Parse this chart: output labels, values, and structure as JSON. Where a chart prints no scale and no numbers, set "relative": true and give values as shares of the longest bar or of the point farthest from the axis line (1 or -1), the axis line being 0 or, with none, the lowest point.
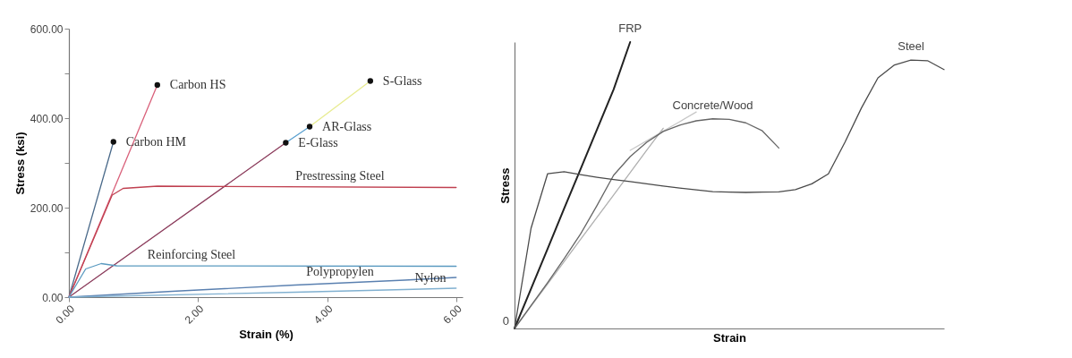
{
  "chart_data": [
    {
      "type": "line",
      "xlabel": "Strain (%)",
      "ylabel": "Stress (ksi)",
      "xlim": [
        0,
        6.1
      ],
      "ylim": [
        0,
        600
      ],
      "xticks": [
        {
          "value": 0,
          "label": "0.00"
        },
        {
          "value": 2,
          "label": "2.00"
        },
        {
          "value": 4,
          "label": "4.00"
        },
        {
          "value": 6,
          "label": "6.00"
        }
      ],
      "yticks": [
        {
          "value": 0,
          "label": "0.00"
        },
        {
          "value": 100,
          "label": null
        },
        {
          "value": 200,
          "label": "200.00"
        },
        {
          "value": 300,
          "label": null
        },
        {
          "value": 400,
          "label": "400.00"
        },
        {
          "value": 500,
          "label": null
        },
        {
          "value": 600,
          "label": "600.00"
        }
      ],
      "grid": false,
      "series": [
        {
          "color": "#4a6a8a",
          "x": [
            0,
            0.69
          ],
          "values": [
            0,
            347
          ]
        },
        {
          "color": "#d9607a",
          "x": [
            0,
            1.37
          ],
          "values": [
            0,
            474
          ]
        },
        {
          "color": "#8a3a5a",
          "x": [
            0,
            3.36
          ],
          "values": [
            0,
            345
          ]
        },
        {
          "color": "#5aa0d0",
          "x": [
            3.36,
            3.73
          ],
          "values": [
            345,
            381
          ]
        },
        {
          "color": "#e8ec90",
          "x": [
            3.73,
            4.67
          ],
          "values": [
            381,
            483
          ]
        },
        {
          "color": "#c04050",
          "x": [
            0,
            0.67,
            0.84,
            1.37,
            6
          ],
          "values": [
            0,
            228,
            243,
            248,
            245
          ]
        },
        {
          "color": "#5a9ac0",
          "x": [
            0,
            0.26,
            0.5,
            0.74,
            6
          ],
          "values": [
            0,
            63,
            75,
            70,
            69
          ]
        },
        {
          "color": "#5a80b0",
          "x": [
            0,
            1.6,
            3.5,
            5.2,
            6
          ],
          "values": [
            0,
            13,
            27,
            38,
            44
          ]
        },
        {
          "color": "#80b0d0",
          "x": [
            0,
            3.5,
            5.2,
            6
          ],
          "values": [
            0,
            11,
            17,
            20
          ]
        },
        {
          "type": "scatter",
          "color": "#111111",
          "x": [
            0.69,
            1.37,
            3.36,
            3.73,
            4.67
          ],
          "values": [
            347,
            474,
            345,
            381,
            483
          ]
        }
      ],
      "annotations": [
        {
          "text": "Carbon HS",
          "x": 1.37,
          "y": 474
        },
        {
          "text": "Carbon HM",
          "x": 0.69,
          "y": 347
        },
        {
          "text": "S-Glass",
          "x": 4.67,
          "y": 483
        },
        {
          "text": "AR-Glass",
          "x": 3.73,
          "y": 381
        },
        {
          "text": "E-Glass",
          "x": 3.36,
          "y": 345
        },
        {
          "text": "Prestressing Steel",
          "x": 4.2,
          "y": 246
        },
        {
          "text": "Reinforcing Steel",
          "x": 1.9,
          "y": 70
        },
        {
          "text": "Polypropylen",
          "x": 4.2,
          "y": 31.5
        },
        {
          "text": "Nylon",
          "x": 5.6,
          "y": 18.5
        }
      ]
    },
    {
      "type": "line",
      "relative": true,
      "xlabel": "Strain",
      "ylabel": "Stress",
      "grid": false,
      "tick_labels": false,
      "categories": [
        null,
        null,
        null,
        null,
        null,
        null,
        null,
        null,
        null,
        null,
        null,
        null,
        null,
        null,
        null,
        null,
        null,
        null,
        null,
        null,
        null,
        null,
        null,
        null,
        null,
        null,
        null
      ],
      "series": [
        {
          "color": "#b0b0b0",
          "values": [
            0,
            0.078,
            0.155,
            0.233,
            0.311,
            0.389,
            0.466,
            0.544,
            0.622,
            0.699,
            null,
            null,
            null,
            null,
            null,
            null,
            null,
            null,
            null,
            null,
            null,
            null,
            null,
            null,
            null,
            null,
            null
          ]
        },
        {
          "color": "#c8c8c8",
          "values": [
            null,
            null,
            null,
            null,
            null,
            null,
            null,
            0.622,
            0.655,
            0.689,
            0.722,
            0.756,
            null,
            null,
            null,
            null,
            null,
            null,
            null,
            null,
            null,
            null,
            null,
            null,
            null,
            null,
            null
          ]
        },
        {
          "name": "FRP",
          "color": "#222222",
          "values": [
            0,
            0.139,
            0.278,
            0.418,
            0.557,
            0.696,
            0.835,
            1.0,
            null,
            null,
            null,
            null,
            null,
            null,
            null,
            null,
            null,
            null,
            null,
            null,
            null,
            null,
            null,
            null,
            null,
            null,
            null
          ]
        },
        {
          "name": "Concrete/Wood",
          "color": "#666666",
          "values": [
            0,
            0.08,
            0.16,
            0.243,
            0.33,
            0.43,
            0.535,
            0.6,
            0.65,
            0.688,
            0.71,
            0.725,
            0.732,
            0.73,
            0.718,
            0.69,
            0.63,
            null,
            null,
            null,
            null,
            null,
            null,
            null,
            null,
            null,
            null
          ]
        },
        {
          "name": "Steel",
          "color": "#4a4a4a",
          "values": [
            0,
            0.35,
            0.54,
            0.547,
            0.537,
            0.528,
            0.52,
            0.513,
            0.505,
            0.497,
            0.49,
            0.484,
            0.478,
            0.476,
            0.475,
            0.476,
            0.477,
            0.485,
            0.505,
            0.54,
            0.65,
            0.77,
            0.875,
            0.92,
            0.937,
            0.935,
            0.904
          ]
        }
      ],
      "annotations": [
        "0"
      ]
    }
  ]
}
